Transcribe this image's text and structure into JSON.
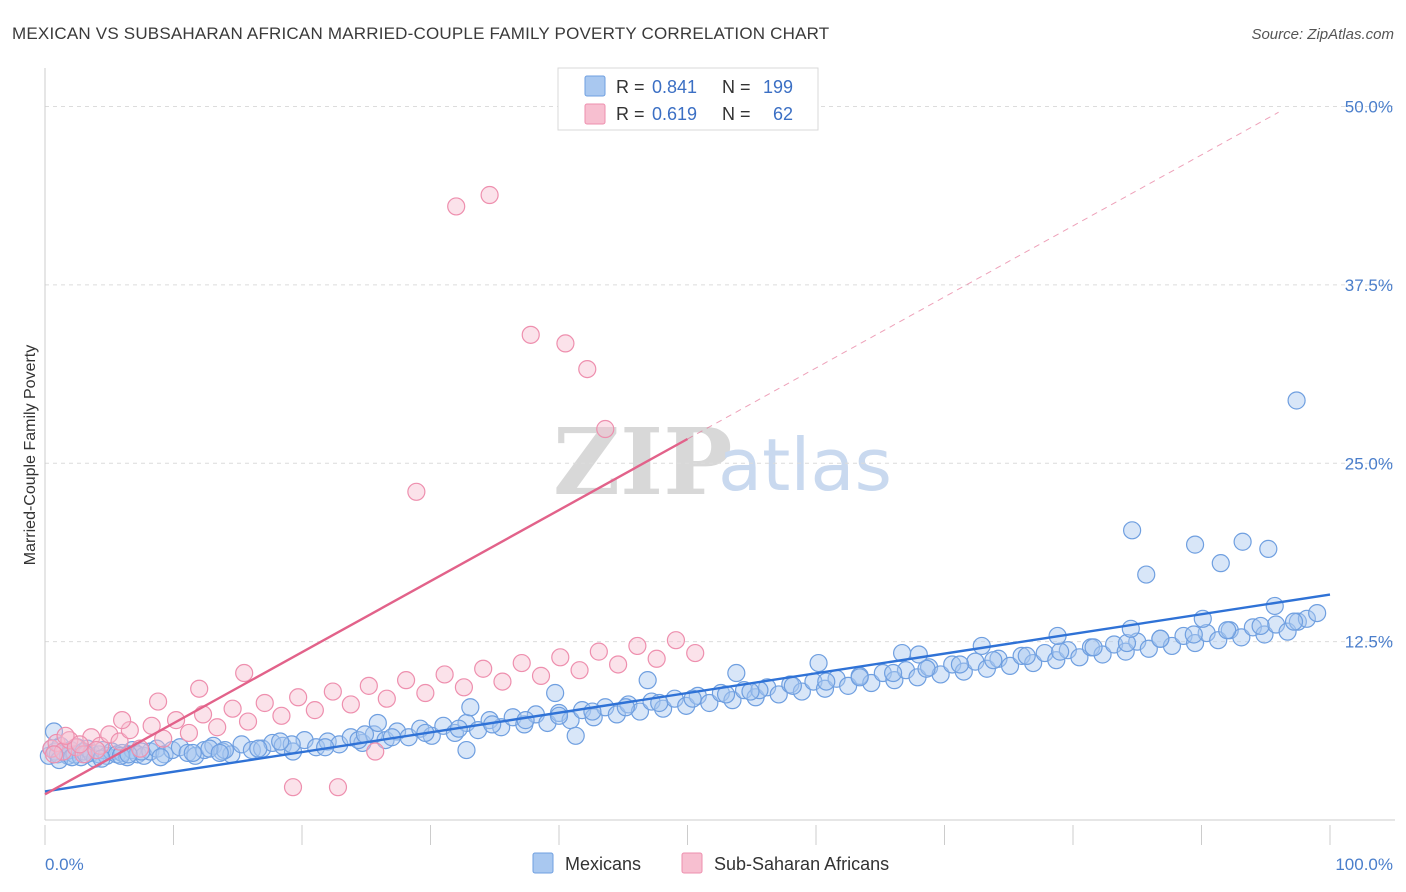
{
  "title": "MEXICAN VS SUBSAHARAN AFRICAN MARRIED-COUPLE FAMILY POVERTY CORRELATION CHART",
  "source": "Source: ZipAtlas.com",
  "watermark": {
    "zip": "ZIP",
    "atlas": "atlas"
  },
  "legend": {
    "rows": [
      {
        "r_label": "R =",
        "r_value": "0.841",
        "n_label": "N =",
        "n_value": "199",
        "color": "#a9c8f0",
        "stroke": "#6f9fe0"
      },
      {
        "r_label": "R =",
        "r_value": "0.619",
        "n_label": "N =",
        "n_value": "62",
        "color": "#f7bfd0",
        "stroke": "#ee8fae"
      }
    ]
  },
  "bottom_legend": [
    "Mexicans",
    "Sub-Saharan Africans"
  ],
  "chart_data": {
    "type": "scatter",
    "title": "MEXICAN VS SUBSAHARAN AFRICAN MARRIED-COUPLE FAMILY POVERTY CORRELATION CHART",
    "xlabel": "",
    "ylabel": "Married-Couple Family Poverty",
    "xlim": [
      0,
      100
    ],
    "ylim": [
      0,
      52
    ],
    "x_tick_labels": [
      "0.0%",
      "100.0%"
    ],
    "y_ticks": [
      12.5,
      25.0,
      37.5,
      50.0
    ],
    "y_tick_labels": [
      "12.5%",
      "25.0%",
      "37.5%",
      "50.0%"
    ],
    "grid": true,
    "legend_position": "top-center",
    "series": [
      {
        "name": "Mexicans",
        "color": "#6f9fe0",
        "fill": "#a9c8f0",
        "line_color": "#2f72d6",
        "trend": {
          "x": [
            0,
            100
          ],
          "y": [
            2.0,
            15.8
          ],
          "style": "solid"
        },
        "x": [
          0.3,
          0.5,
          0.8,
          1.0,
          1.2,
          1.5,
          1.8,
          2.0,
          2.3,
          2.5,
          2.8,
          3.0,
          3.3,
          3.6,
          3.9,
          4.2,
          4.5,
          4.8,
          5.2,
          5.6,
          6.0,
          6.4,
          6.8,
          7.2,
          7.7,
          8.2,
          8.7,
          9.3,
          9.9,
          10.5,
          11.1,
          11.7,
          12.4,
          13.1,
          13.8,
          14.5,
          15.3,
          16.1,
          16.9,
          17.7,
          18.5,
          19.3,
          20.2,
          21.1,
          22.0,
          22.9,
          23.8,
          24.7,
          25.6,
          26.5,
          27.4,
          28.3,
          29.2,
          30.1,
          31.0,
          31.9,
          32.8,
          33.7,
          34.6,
          35.5,
          36.4,
          37.3,
          38.2,
          39.1,
          40.0,
          40.9,
          41.8,
          42.7,
          43.6,
          44.5,
          45.4,
          46.3,
          47.2,
          48.1,
          49.0,
          49.9,
          50.8,
          51.7,
          52.6,
          53.5,
          54.4,
          55.3,
          56.2,
          57.1,
          58.0,
          58.9,
          59.8,
          60.7,
          61.6,
          62.5,
          63.4,
          64.3,
          65.2,
          66.1,
          67.0,
          67.9,
          68.8,
          69.7,
          70.6,
          71.5,
          72.4,
          73.3,
          74.2,
          75.1,
          76.0,
          76.9,
          77.8,
          78.7,
          79.6,
          80.5,
          81.4,
          82.3,
          83.2,
          84.1,
          85.0,
          85.9,
          86.8,
          87.7,
          88.6,
          89.5,
          90.4,
          91.3,
          92.2,
          93.1,
          94.0,
          94.9,
          95.8,
          96.7,
          97.5,
          98.2,
          99.0,
          1.1,
          2.1,
          3.2,
          4.4,
          5.9,
          7.5,
          9.0,
          11.5,
          14.0,
          16.6,
          19.2,
          21.8,
          24.4,
          27.0,
          29.6,
          32.2,
          34.8,
          37.4,
          40.0,
          42.6,
          45.2,
          47.8,
          50.4,
          53.0,
          55.6,
          58.2,
          60.8,
          63.4,
          66.0,
          68.6,
          71.2,
          73.8,
          76.4,
          79.0,
          81.6,
          84.2,
          86.8,
          89.4,
          92.0,
          94.6,
          97.2,
          0.7,
          6.5,
          12.8,
          18.3,
          25.9,
          33.1,
          39.7,
          46.9,
          53.8,
          60.2,
          66.7,
          72.9,
          78.8,
          84.5,
          90.1,
          95.7,
          54.9,
          68.0,
          85.7,
          89.5,
          95.2,
          97.4,
          84.6,
          91.5,
          93.2,
          41.3,
          32.8,
          24.9,
          13.6
        ],
        "y": [
          4.5,
          5.0,
          4.8,
          4.6,
          5.2,
          4.7,
          4.5,
          4.9,
          4.6,
          5.1,
          4.4,
          4.8,
          5.0,
          4.7,
          4.3,
          4.6,
          4.9,
          4.5,
          4.8,
          4.6,
          4.7,
          4.4,
          4.9,
          4.6,
          4.5,
          4.8,
          5.0,
          4.6,
          4.9,
          5.1,
          4.7,
          4.5,
          4.9,
          5.2,
          4.8,
          4.6,
          5.3,
          4.9,
          5.0,
          5.4,
          5.2,
          4.8,
          5.6,
          5.1,
          5.5,
          5.3,
          5.8,
          5.4,
          6.0,
          5.6,
          6.2,
          5.8,
          6.4,
          5.9,
          6.6,
          6.1,
          6.8,
          6.3,
          7.0,
          6.5,
          7.2,
          6.7,
          7.4,
          6.8,
          7.5,
          7.0,
          7.7,
          7.2,
          7.9,
          7.4,
          8.1,
          7.6,
          8.3,
          7.8,
          8.5,
          8.0,
          8.7,
          8.2,
          8.9,
          8.4,
          9.1,
          8.6,
          9.3,
          8.8,
          9.5,
          9.0,
          9.7,
          9.2,
          9.9,
          9.4,
          10.1,
          9.6,
          10.3,
          9.8,
          10.5,
          10.0,
          10.7,
          10.2,
          10.9,
          10.4,
          11.1,
          10.6,
          11.3,
          10.8,
          11.5,
          11.0,
          11.7,
          11.2,
          11.9,
          11.4,
          12.1,
          11.6,
          12.3,
          11.8,
          12.5,
          12.0,
          12.7,
          12.2,
          12.9,
          12.4,
          13.1,
          12.6,
          13.3,
          12.8,
          13.5,
          13.0,
          13.7,
          13.2,
          13.9,
          14.1,
          14.5,
          4.2,
          4.4,
          4.6,
          4.3,
          4.5,
          4.8,
          4.4,
          4.7,
          4.9,
          5.0,
          5.3,
          5.1,
          5.6,
          5.8,
          6.1,
          6.4,
          6.7,
          7.0,
          7.3,
          7.6,
          7.9,
          8.2,
          8.5,
          8.8,
          9.1,
          9.4,
          9.7,
          10.0,
          10.3,
          10.6,
          10.9,
          11.2,
          11.5,
          11.8,
          12.1,
          12.4,
          12.7,
          13.0,
          13.3,
          13.6,
          13.9,
          6.2,
          4.6,
          5.0,
          5.5,
          6.8,
          7.9,
          8.9,
          9.8,
          10.3,
          11.0,
          11.7,
          12.2,
          12.9,
          13.4,
          14.1,
          15.0,
          9.0,
          11.6,
          17.2,
          19.3,
          19.0,
          29.4,
          20.3,
          18.0,
          19.5,
          5.9,
          4.9,
          6.0,
          4.7
        ]
      },
      {
        "name": "Sub-Saharan Africans",
        "color": "#ee8fae",
        "fill": "#f7bfd0",
        "line_color": "#e2628a",
        "trend": {
          "x": [
            0,
            50
          ],
          "y": [
            1.8,
            26.7
          ],
          "style": "solid"
        },
        "trend_extension": {
          "x": [
            50,
            96
          ],
          "y": [
            26.7,
            49.6
          ],
          "style": "dashed"
        },
        "x": [
          0.5,
          0.9,
          1.4,
          1.9,
          2.4,
          3.0,
          3.6,
          4.3,
          5.0,
          5.8,
          6.6,
          7.4,
          8.3,
          9.2,
          10.2,
          11.2,
          12.3,
          13.4,
          14.6,
          15.8,
          17.1,
          18.4,
          19.7,
          21.0,
          22.4,
          23.8,
          25.2,
          26.6,
          28.1,
          29.6,
          31.1,
          32.6,
          34.1,
          35.6,
          37.1,
          38.6,
          40.1,
          41.6,
          43.1,
          44.6,
          46.1,
          47.6,
          49.1,
          50.6,
          0.7,
          1.6,
          2.7,
          4.0,
          6.0,
          8.8,
          12.0,
          15.5,
          19.3,
          22.8,
          25.7,
          28.9,
          32.0,
          34.6,
          37.8,
          40.5,
          42.2,
          43.6
        ],
        "y": [
          5.0,
          5.4,
          4.8,
          5.6,
          5.1,
          4.6,
          5.8,
          5.2,
          6.0,
          5.5,
          6.3,
          5.0,
          6.6,
          5.7,
          7.0,
          6.1,
          7.4,
          6.5,
          7.8,
          6.9,
          8.2,
          7.3,
          8.6,
          7.7,
          9.0,
          8.1,
          9.4,
          8.5,
          9.8,
          8.9,
          10.2,
          9.3,
          10.6,
          9.7,
          11.0,
          10.1,
          11.4,
          10.5,
          11.8,
          10.9,
          12.2,
          11.3,
          12.6,
          11.7,
          4.6,
          5.9,
          5.3,
          4.9,
          7.0,
          8.3,
          9.2,
          10.3,
          2.3,
          2.3,
          4.8,
          23.0,
          43.0,
          43.8,
          34.0,
          33.4,
          31.6,
          27.4
        ]
      }
    ]
  }
}
